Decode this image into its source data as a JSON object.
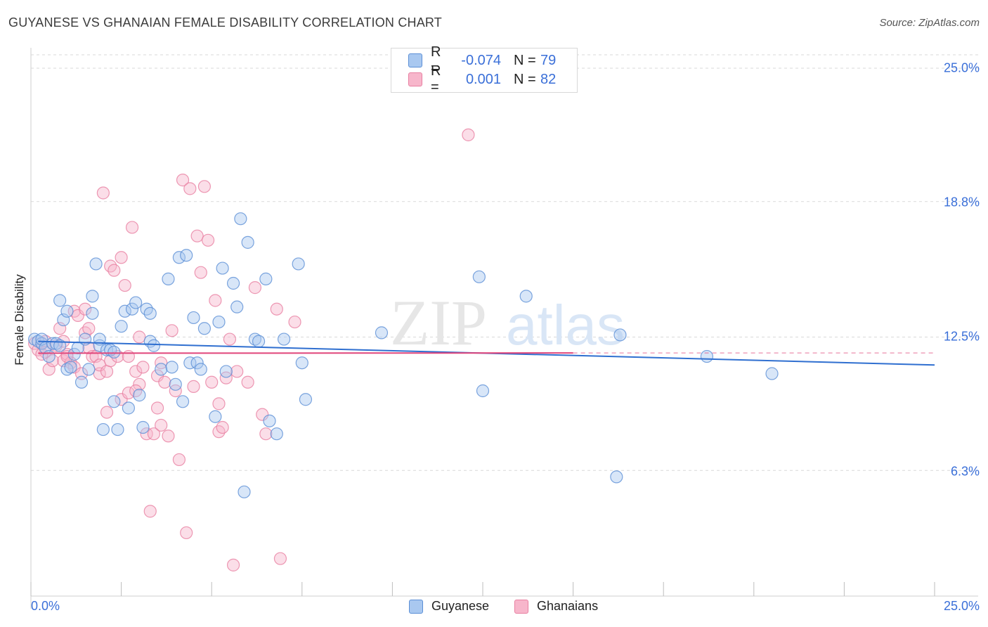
{
  "header": {
    "title": "GUYANESE VS GHANAIAN FEMALE DISABILITY CORRELATION CHART",
    "source": "Source: ZipAtlas.com"
  },
  "legend": {
    "rows": [
      {
        "r_label": "R =",
        "r_value": "-0.074",
        "n_label": "N =",
        "n_value": "79"
      },
      {
        "r_label": "R =",
        "r_value": "0.001",
        "n_label": "N =",
        "n_value": "82"
      }
    ]
  },
  "bottom_legend": {
    "series1": "Guyanese",
    "series2": "Ghanaians"
  },
  "watermark": {
    "part1": "ZIP",
    "part2": "atlas"
  },
  "colors": {
    "blue_fill": "#a9c8f0",
    "blue_stroke": "#5b8fd6",
    "blue_line": "#2f6fd0",
    "pink_fill": "#f7b6cb",
    "pink_stroke": "#e87fa1",
    "pink_line": "#e0457a",
    "grid": "#d9d9d9",
    "axis_text": "#3a6fd8"
  },
  "chart_data": {
    "type": "scatter",
    "title": "GUYANESE VS GHANAIAN FEMALE DISABILITY CORRELATION CHART",
    "xlabel": "",
    "ylabel": "Female Disability",
    "xlim": [
      0,
      25
    ],
    "ylim": [
      0,
      25
    ],
    "x_tick_labels": [
      "0.0%",
      "25.0%"
    ],
    "y_ticks": [
      6.3,
      12.5,
      18.8,
      25.0
    ],
    "y_tick_labels": [
      "6.3%",
      "12.5%",
      "18.8%",
      "25.0%"
    ],
    "grid": true,
    "legend_position": "top-center",
    "series": [
      {
        "name": "Guyanese",
        "r": -0.074,
        "n": 79,
        "trend": {
          "x": [
            0.2,
            25.0
          ],
          "y": [
            12.3,
            11.2
          ]
        },
        "points": [
          [
            0.1,
            12.4
          ],
          [
            0.2,
            12.3
          ],
          [
            0.3,
            12.2
          ],
          [
            0.3,
            12.4
          ],
          [
            0.4,
            12.0
          ],
          [
            0.5,
            11.6
          ],
          [
            0.6,
            12.2
          ],
          [
            0.7,
            12.2
          ],
          [
            0.8,
            12.1
          ],
          [
            0.8,
            14.2
          ],
          [
            0.9,
            13.3
          ],
          [
            1.0,
            13.7
          ],
          [
            1.0,
            11.0
          ],
          [
            1.1,
            11.1
          ],
          [
            1.2,
            11.7
          ],
          [
            1.3,
            12.0
          ],
          [
            1.4,
            10.4
          ],
          [
            1.5,
            12.4
          ],
          [
            1.6,
            11.0
          ],
          [
            1.7,
            13.6
          ],
          [
            1.7,
            14.4
          ],
          [
            1.8,
            15.9
          ],
          [
            1.9,
            12.1
          ],
          [
            1.9,
            12.4
          ],
          [
            2.0,
            8.2
          ],
          [
            2.1,
            11.9
          ],
          [
            2.2,
            11.9
          ],
          [
            2.3,
            11.8
          ],
          [
            2.3,
            9.5
          ],
          [
            2.4,
            8.2
          ],
          [
            2.5,
            13.0
          ],
          [
            2.6,
            13.7
          ],
          [
            2.7,
            9.2
          ],
          [
            2.8,
            13.8
          ],
          [
            2.9,
            14.1
          ],
          [
            3.0,
            9.8
          ],
          [
            3.1,
            8.3
          ],
          [
            3.2,
            13.8
          ],
          [
            3.3,
            12.3
          ],
          [
            3.3,
            13.6
          ],
          [
            3.4,
            12.1
          ],
          [
            3.6,
            11.0
          ],
          [
            3.8,
            15.2
          ],
          [
            3.9,
            11.1
          ],
          [
            4.0,
            10.3
          ],
          [
            4.1,
            16.2
          ],
          [
            4.2,
            9.5
          ],
          [
            4.3,
            16.3
          ],
          [
            4.4,
            11.3
          ],
          [
            4.5,
            13.4
          ],
          [
            4.6,
            11.3
          ],
          [
            4.7,
            11.0
          ],
          [
            4.8,
            12.9
          ],
          [
            5.1,
            8.8
          ],
          [
            5.2,
            13.2
          ],
          [
            5.3,
            15.7
          ],
          [
            5.4,
            10.9
          ],
          [
            5.6,
            15.0
          ],
          [
            5.7,
            13.9
          ],
          [
            5.8,
            18.0
          ],
          [
            6.0,
            16.9
          ],
          [
            6.2,
            12.4
          ],
          [
            6.3,
            12.3
          ],
          [
            6.5,
            15.2
          ],
          [
            6.6,
            8.6
          ],
          [
            6.8,
            8.0
          ],
          [
            7.0,
            12.4
          ],
          [
            7.4,
            15.9
          ],
          [
            7.5,
            11.3
          ],
          [
            7.6,
            9.6
          ],
          [
            9.7,
            12.7
          ],
          [
            12.4,
            15.3
          ],
          [
            12.5,
            10.0
          ],
          [
            13.7,
            14.4
          ],
          [
            16.2,
            6.0
          ],
          [
            16.3,
            12.6
          ],
          [
            18.7,
            11.6
          ],
          [
            20.5,
            10.8
          ],
          [
            5.9,
            5.3
          ]
        ]
      },
      {
        "name": "Ghanaians",
        "r": 0.001,
        "n": 82,
        "trend": {
          "x": [
            0.2,
            15.0
          ],
          "y": [
            11.75,
            11.76
          ]
        },
        "points": [
          [
            0.1,
            12.2
          ],
          [
            0.2,
            11.9
          ],
          [
            0.3,
            12.2
          ],
          [
            0.4,
            12.3
          ],
          [
            0.4,
            11.8
          ],
          [
            0.5,
            11.0
          ],
          [
            0.6,
            11.4
          ],
          [
            0.7,
            12.1
          ],
          [
            0.8,
            12.9
          ],
          [
            0.9,
            12.3
          ],
          [
            0.9,
            11.4
          ],
          [
            1.0,
            11.7
          ],
          [
            1.1,
            11.3
          ],
          [
            1.2,
            11.1
          ],
          [
            1.2,
            13.7
          ],
          [
            1.3,
            13.5
          ],
          [
            1.4,
            10.8
          ],
          [
            1.5,
            12.7
          ],
          [
            1.5,
            13.8
          ],
          [
            1.6,
            12.0
          ],
          [
            1.6,
            12.9
          ],
          [
            1.7,
            11.6
          ],
          [
            1.8,
            11.6
          ],
          [
            1.9,
            10.8
          ],
          [
            1.9,
            11.2
          ],
          [
            2.0,
            19.2
          ],
          [
            2.1,
            9.0
          ],
          [
            2.1,
            10.9
          ],
          [
            2.2,
            11.4
          ],
          [
            2.2,
            15.8
          ],
          [
            2.3,
            15.6
          ],
          [
            2.4,
            11.6
          ],
          [
            2.5,
            9.6
          ],
          [
            2.5,
            16.2
          ],
          [
            2.6,
            14.9
          ],
          [
            2.7,
            11.6
          ],
          [
            2.7,
            9.9
          ],
          [
            2.8,
            17.6
          ],
          [
            2.9,
            10.9
          ],
          [
            3.0,
            12.5
          ],
          [
            3.0,
            10.3
          ],
          [
            3.1,
            11.1
          ],
          [
            3.2,
            8.0
          ],
          [
            3.3,
            4.4
          ],
          [
            3.4,
            8.0
          ],
          [
            3.5,
            9.2
          ],
          [
            3.5,
            10.7
          ],
          [
            3.6,
            8.4
          ],
          [
            3.7,
            10.4
          ],
          [
            3.8,
            7.9
          ],
          [
            3.9,
            12.8
          ],
          [
            4.0,
            10.0
          ],
          [
            4.1,
            6.8
          ],
          [
            4.2,
            19.8
          ],
          [
            4.3,
            3.4
          ],
          [
            4.4,
            19.4
          ],
          [
            4.5,
            10.2
          ],
          [
            4.6,
            17.2
          ],
          [
            4.7,
            15.5
          ],
          [
            4.8,
            19.5
          ],
          [
            4.9,
            17.0
          ],
          [
            5.0,
            10.4
          ],
          [
            5.1,
            14.2
          ],
          [
            5.2,
            9.4
          ],
          [
            5.2,
            8.1
          ],
          [
            5.3,
            8.3
          ],
          [
            5.4,
            10.6
          ],
          [
            5.5,
            12.4
          ],
          [
            5.6,
            1.9
          ],
          [
            5.7,
            10.9
          ],
          [
            6.0,
            10.4
          ],
          [
            6.2,
            14.8
          ],
          [
            6.4,
            8.9
          ],
          [
            6.5,
            8.0
          ],
          [
            6.8,
            13.8
          ],
          [
            6.9,
            2.2
          ],
          [
            7.3,
            13.2
          ],
          [
            12.1,
            21.9
          ],
          [
            2.9,
            10.0
          ],
          [
            0.3,
            11.7
          ],
          [
            1.0,
            11.6
          ],
          [
            3.6,
            11.3
          ]
        ]
      }
    ]
  }
}
